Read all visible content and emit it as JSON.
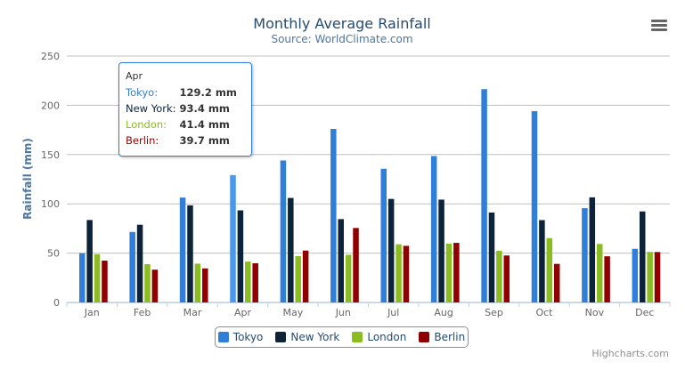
{
  "chart_data": {
    "type": "bar",
    "title": "Monthly Average Rainfall",
    "subtitle": "Source: WorldClimate.com",
    "xlabel": "",
    "ylabel": "Rainfall (mm)",
    "ylim": [
      0,
      250
    ],
    "yticks": [
      "0",
      "50",
      "100",
      "150",
      "200",
      "250"
    ],
    "grid": true,
    "legend_position": "bottom",
    "categories": [
      "Jan",
      "Feb",
      "Mar",
      "Apr",
      "May",
      "Jun",
      "Jul",
      "Aug",
      "Sep",
      "Oct",
      "Nov",
      "Dec"
    ],
    "series": [
      {
        "name": "Tokyo",
        "color": "#2f7ed8",
        "values": [
          49.9,
          71.5,
          106.4,
          129.2,
          144.0,
          176.0,
          135.6,
          148.5,
          216.4,
          194.1,
          95.6,
          54.4
        ]
      },
      {
        "name": "New York",
        "color": "#0d233a",
        "values": [
          83.6,
          78.8,
          98.5,
          93.4,
          106.0,
          84.5,
          105.0,
          104.3,
          91.2,
          83.5,
          106.6,
          92.3
        ]
      },
      {
        "name": "London",
        "color": "#8bbc21",
        "values": [
          48.9,
          38.8,
          39.3,
          41.4,
          47.0,
          48.3,
          59.0,
          59.6,
          52.4,
          65.2,
          59.3,
          51.2
        ]
      },
      {
        "name": "Berlin",
        "color": "#910000",
        "values": [
          42.4,
          33.2,
          34.5,
          39.7,
          52.6,
          75.5,
          57.4,
          60.4,
          47.6,
          39.1,
          46.8,
          51.1
        ]
      }
    ]
  },
  "tooltip": {
    "header": "Apr",
    "rows": [
      {
        "label": "Tokyo: ",
        "value": "129.2 mm",
        "color": "#2f7ed8"
      },
      {
        "label": "New York: ",
        "value": "93.4 mm",
        "color": "#0d233a"
      },
      {
        "label": "London: ",
        "value": "41.4 mm",
        "color": "#8bbc21"
      },
      {
        "label": "Berlin: ",
        "value": "39.7 mm",
        "color": "#910000"
      }
    ]
  },
  "menu_icon": "hamburger-menu-icon",
  "credits": "Highcharts.com"
}
